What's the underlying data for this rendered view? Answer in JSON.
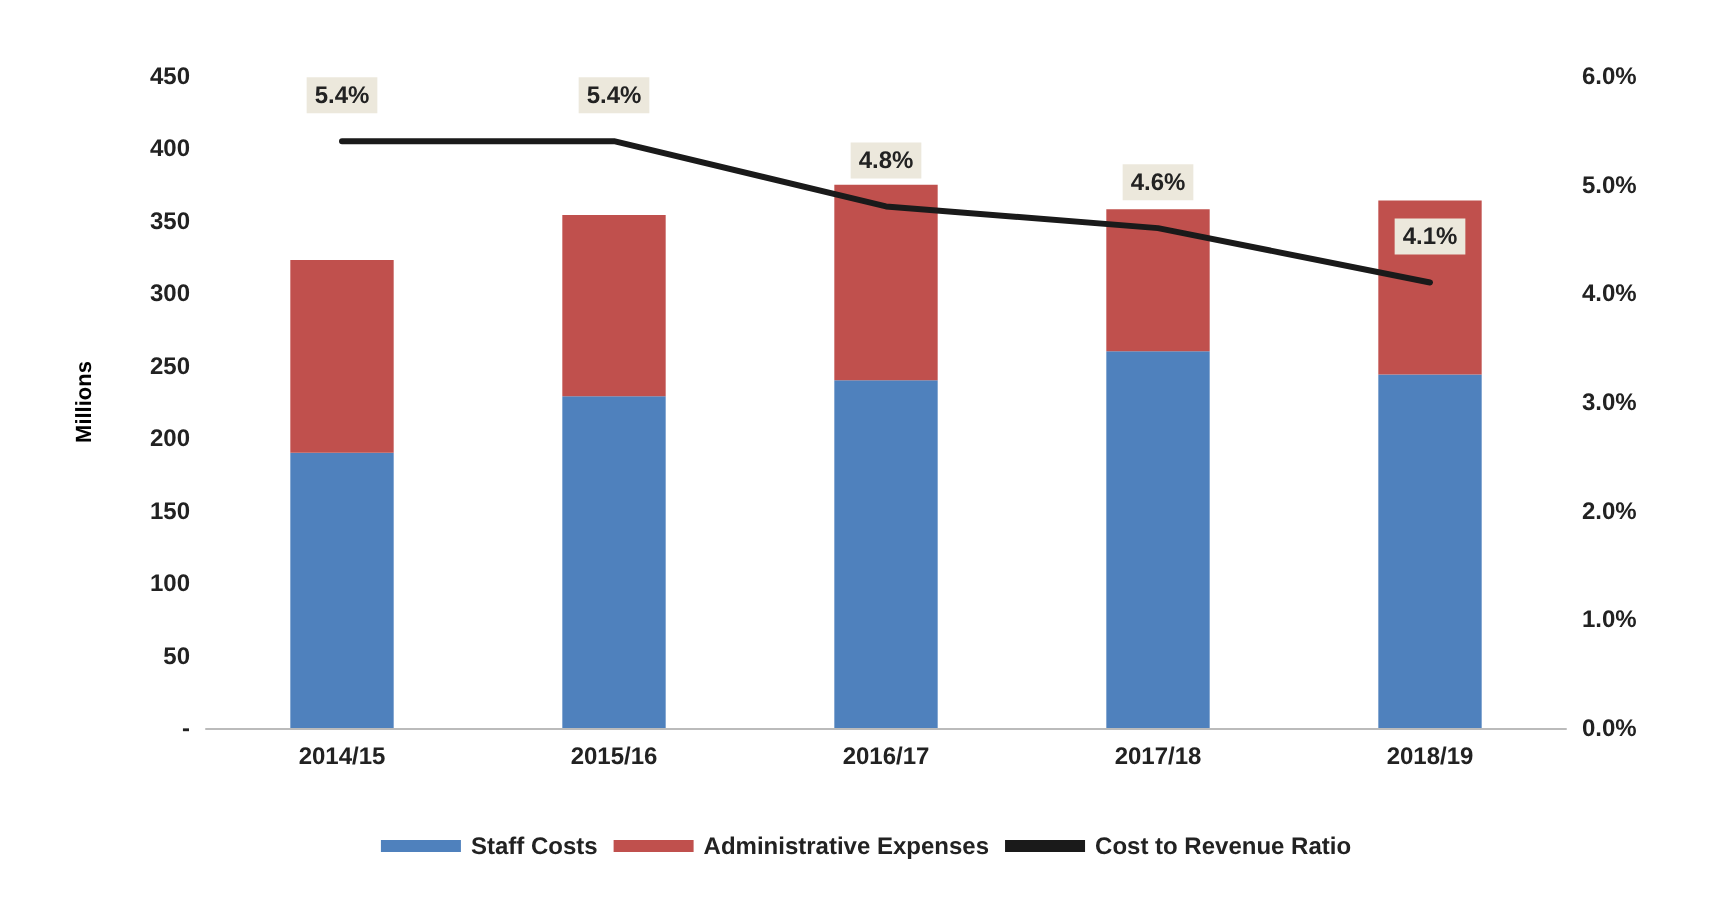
{
  "chart_data": {
    "type": "bar",
    "stacked": true,
    "ylabel": "Millions",
    "categories": [
      "2014/15",
      "2015/16",
      "2016/17",
      "2017/18",
      "2018/19"
    ],
    "series": [
      {
        "name": "Staff Costs",
        "color": "#4f81bd",
        "values": [
          190,
          229,
          240,
          260,
          244
        ]
      },
      {
        "name": "Administrative Expenses",
        "color": "#c0504d",
        "values": [
          133,
          125,
          135,
          98,
          120
        ]
      },
      {
        "name": "Cost to Revenue Ratio",
        "type": "line",
        "axis": "y2",
        "color": "#1a1a1a",
        "values": [
          5.4,
          5.4,
          4.8,
          4.6,
          4.1
        ],
        "value_labels": [
          "5.4%",
          "5.4%",
          "4.8%",
          "4.6%",
          "4.1%"
        ]
      }
    ],
    "ylim": [
      0,
      450
    ],
    "yticks": [
      {
        "value": 0,
        "label": "-"
      },
      50,
      100,
      150,
      200,
      250,
      300,
      350,
      400,
      450
    ],
    "y2lim": [
      0,
      6
    ],
    "y2ticks": [
      {
        "value": 0,
        "label": "0.0%"
      },
      {
        "value": 1,
        "label": "1.0%"
      },
      {
        "value": 2,
        "label": "2.0%"
      },
      {
        "value": 3,
        "label": "3.0%"
      },
      {
        "value": 4,
        "label": "4.0%"
      },
      {
        "value": 5,
        "label": "5.0%"
      },
      {
        "value": 6,
        "label": "6.0%"
      }
    ],
    "grid": false,
    "legend": "bottom",
    "marker": "none",
    "line_style": "solid"
  }
}
